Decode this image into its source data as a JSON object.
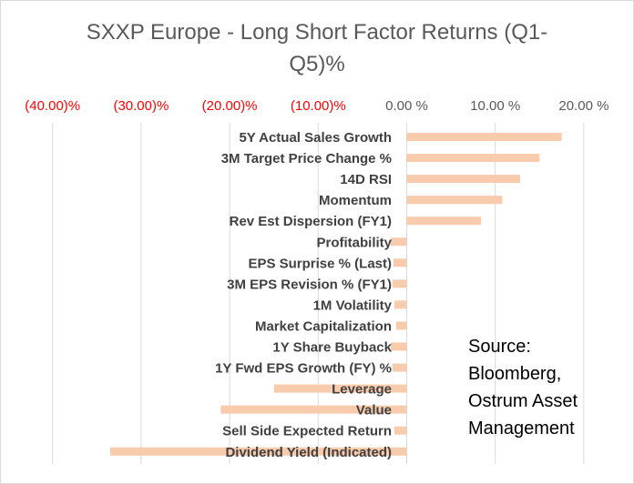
{
  "chart_data": {
    "type": "bar",
    "orientation": "horizontal",
    "title": "SXXP Europe - Long Short Factor Returns (Q1-Q5)%",
    "title_lines": [
      "SXXP Europe - Long Short Factor Returns (Q1-",
      "Q5)%"
    ],
    "xlim": [
      -45,
      22
    ],
    "x_ticks": [
      {
        "value": -40,
        "label": "(40.00)%",
        "color": "#ff0000"
      },
      {
        "value": -30,
        "label": "(30.00)%",
        "color": "#ff0000"
      },
      {
        "value": -20,
        "label": "(20.00)%",
        "color": "#ff0000"
      },
      {
        "value": -10,
        "label": "(10.00)%",
        "color": "#ff0000"
      },
      {
        "value": 0,
        "label": "0.00 %",
        "color": "#595959"
      },
      {
        "value": 10,
        "label": "10.00 %",
        "color": "#595959"
      },
      {
        "value": 20,
        "label": "20.00 %",
        "color": "#595959"
      }
    ],
    "x_axis_position": "top",
    "grid": true,
    "bar_color": "#f8cbad",
    "categories": [
      "5Y Actual Sales Growth",
      "3M Target Price Change %",
      "14D RSI",
      "Momentum",
      "Rev Est Dispersion (FY1)",
      "Profitability",
      "EPS Surprise % (Last)",
      "3M EPS Revision % (FY1)",
      "1M Volatility",
      "Market Capitalization",
      "1Y Share Buyback",
      "1Y Fwd EPS Growth (FY) %",
      "Leverage",
      "Value",
      "Sell Side Expected Return",
      "Dividend Yield (Indicated)"
    ],
    "values": [
      17.5,
      15.0,
      12.8,
      10.8,
      8.4,
      -1.8,
      -1.5,
      -1.6,
      -1.4,
      -1.2,
      -1.8,
      -1.6,
      -15.0,
      -21.0,
      -1.4,
      -33.5
    ]
  },
  "source_lines": [
    "Source:",
    "Bloomberg,",
    "Ostrum Asset",
    "Management"
  ]
}
